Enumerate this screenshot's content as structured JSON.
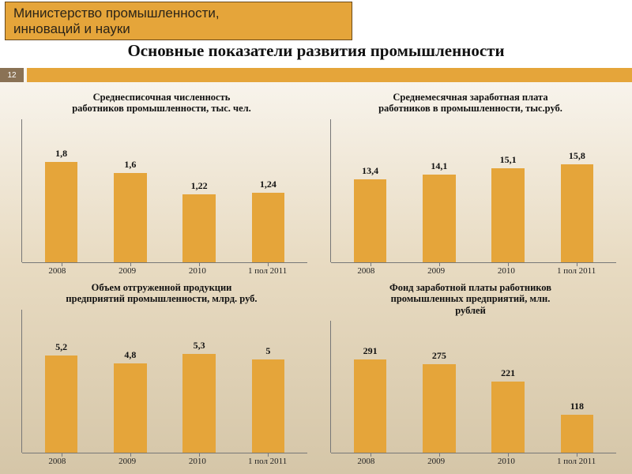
{
  "colors": {
    "accent": "#e5a53a",
    "bg_top": "#ffffff",
    "bg_mid": "#e8dbc2",
    "bg_bot": "#d5c6a8",
    "axis": "#777777",
    "text": "#111111",
    "stripe_num_bg": "#8a7255"
  },
  "header": {
    "ministry_line1": "Министерство промышленности,",
    "ministry_line2": "инноваций и науки",
    "slide_number": "12"
  },
  "title": "Основные показатели развития промышленности",
  "categories": [
    "2008",
    "2009",
    "2010",
    "1 пол 2011"
  ],
  "charts": [
    {
      "id": "headcount",
      "title": "Среднесписочная численность\nработников промышленности,   тыс. чел.",
      "type": "bar",
      "values": [
        1.8,
        1.6,
        1.22,
        1.24
      ],
      "display_values": [
        "1,8",
        "1,6",
        "1,22",
        "1,24"
      ],
      "ymax": 2.0,
      "bar_color": "#e5a53a",
      "title_fontsize": 12.5,
      "value_fontsize": 12
    },
    {
      "id": "salary",
      "title": "Среднемесячная заработная плата\nработников в промышленности,  тыс.руб.",
      "type": "bar",
      "values": [
        13.4,
        14.1,
        15.1,
        15.8
      ],
      "display_values": [
        "13,4",
        "14,1",
        "15,1",
        "15,8"
      ],
      "ymax": 18.0,
      "bar_color": "#e5a53a",
      "title_fontsize": 12.5,
      "value_fontsize": 12
    },
    {
      "id": "shipped",
      "title": "Объем отгруженной продукции\nпредприятий  промышленности,  млрд. руб.",
      "type": "bar",
      "values": [
        5.2,
        4.8,
        5.3,
        5.0
      ],
      "display_values": [
        "5,2",
        "4,8",
        "5,3",
        "5"
      ],
      "ymax": 6.0,
      "bar_color": "#e5a53a",
      "title_fontsize": 12.5,
      "value_fontsize": 12
    },
    {
      "id": "payroll",
      "title": "Фонд заработной платы  работников\nпромышленных  предприятий,  млн.\nрублей",
      "type": "bar",
      "values": [
        291,
        275,
        221,
        118
      ],
      "display_values": [
        "291",
        "275",
        "221",
        "118"
      ],
      "ymax": 320,
      "bar_color": "#e5a53a",
      "title_fontsize": 12.5,
      "value_fontsize": 12
    }
  ]
}
